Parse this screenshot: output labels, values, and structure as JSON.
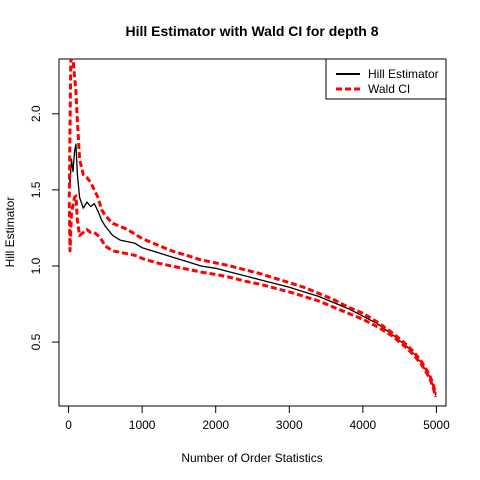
{
  "chart_data": {
    "type": "line",
    "title": "Hill Estimator with Wald CI for depth 8",
    "xlabel": "Number of Order Statistics",
    "ylabel": "Hill Estimator",
    "xlim": [
      -130,
      5130
    ],
    "ylim": [
      0.08,
      2.36
    ],
    "x_ticks": [
      0,
      1000,
      2000,
      3000,
      4000,
      5000
    ],
    "y_ticks": [
      0.5,
      1.0,
      1.5,
      2.0
    ],
    "x_tick_labels": [
      "0",
      "1000",
      "2000",
      "3000",
      "4000",
      "5000"
    ],
    "y_tick_labels": [
      "0.5",
      "1.0",
      "1.5",
      "2.0"
    ],
    "grid": false,
    "legend_position": "top-right",
    "series": [
      {
        "name": "Hill Estimator",
        "color": "#000000",
        "style": "solid",
        "x": [
          10,
          20,
          40,
          60,
          80,
          100,
          120,
          150,
          200,
          250,
          300,
          350,
          400,
          450,
          500,
          600,
          700,
          800,
          900,
          1000,
          1200,
          1400,
          1600,
          1800,
          2000,
          2200,
          2400,
          2600,
          2800,
          3000,
          3200,
          3400,
          3600,
          3800,
          4000,
          4200,
          4400,
          4600,
          4700,
          4800,
          4900,
          4950,
          4990
        ],
        "y": [
          1.6,
          1.55,
          1.7,
          1.62,
          1.75,
          1.8,
          1.6,
          1.45,
          1.38,
          1.42,
          1.39,
          1.41,
          1.36,
          1.3,
          1.26,
          1.2,
          1.17,
          1.16,
          1.15,
          1.12,
          1.09,
          1.06,
          1.03,
          1.0,
          0.985,
          0.96,
          0.935,
          0.91,
          0.885,
          0.86,
          0.83,
          0.8,
          0.76,
          0.72,
          0.67,
          0.62,
          0.55,
          0.47,
          0.42,
          0.36,
          0.28,
          0.22,
          0.15
        ]
      },
      {
        "name": "Wald CI",
        "color": "#ff0000",
        "style": "dashed",
        "x": [
          10,
          20,
          30,
          40,
          60,
          80,
          100,
          120,
          150,
          200,
          250,
          300,
          350,
          400,
          450,
          500,
          600,
          700,
          800,
          900,
          1000,
          1200,
          1400,
          1600,
          1800,
          2000,
          2200,
          2400,
          2600,
          2800,
          3000,
          3200,
          3400,
          3600,
          3800,
          4000,
          4200,
          4400,
          4600,
          4700,
          4800,
          4900,
          4950,
          4990
        ],
        "y": [
          1.45,
          1.9,
          2.36,
          2.36,
          2.36,
          2.25,
          2.15,
          1.95,
          1.7,
          1.6,
          1.58,
          1.55,
          1.5,
          1.45,
          1.37,
          1.33,
          1.28,
          1.26,
          1.24,
          1.21,
          1.18,
          1.14,
          1.1,
          1.07,
          1.04,
          1.02,
          1.0,
          0.975,
          0.95,
          0.92,
          0.89,
          0.86,
          0.82,
          0.78,
          0.73,
          0.69,
          0.63,
          0.56,
          0.48,
          0.43,
          0.37,
          0.29,
          0.23,
          0.16
        ]
      },
      {
        "name": "",
        "color": "#ff0000",
        "style": "dashed",
        "x": [
          10,
          20,
          40,
          60,
          80,
          100,
          120,
          150,
          200,
          250,
          300,
          350,
          400,
          450,
          500,
          600,
          700,
          800,
          900,
          1000,
          1200,
          1400,
          1600,
          1800,
          2000,
          2200,
          2400,
          2600,
          2800,
          3000,
          3200,
          3400,
          3600,
          3800,
          4000,
          4200,
          4400,
          4600,
          4700,
          4800,
          4900,
          4950,
          4990
        ],
        "y": [
          1.42,
          1.1,
          1.35,
          1.4,
          1.45,
          1.46,
          1.3,
          1.2,
          1.22,
          1.24,
          1.22,
          1.22,
          1.2,
          1.17,
          1.13,
          1.1,
          1.09,
          1.08,
          1.07,
          1.05,
          1.02,
          1.0,
          0.98,
          0.96,
          0.945,
          0.925,
          0.9,
          0.88,
          0.855,
          0.83,
          0.8,
          0.77,
          0.73,
          0.69,
          0.65,
          0.6,
          0.54,
          0.46,
          0.41,
          0.35,
          0.27,
          0.21,
          0.14
        ]
      }
    ]
  }
}
